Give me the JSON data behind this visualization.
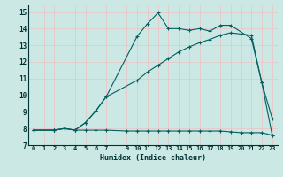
{
  "xlabel": "Humidex (Indice chaleur)",
  "bg_color": "#cce8e4",
  "grid_color": "#e8c8c8",
  "line_color": "#006060",
  "xlim": [
    -0.5,
    23.5
  ],
  "ylim": [
    7.0,
    15.4
  ],
  "xticks": [
    0,
    1,
    2,
    3,
    4,
    5,
    6,
    7,
    9,
    10,
    11,
    12,
    13,
    14,
    15,
    16,
    17,
    18,
    19,
    20,
    21,
    22,
    23
  ],
  "yticks": [
    7,
    8,
    9,
    10,
    11,
    12,
    13,
    14,
    15
  ],
  "line1_x": [
    0,
    2,
    3,
    4,
    5,
    6,
    7,
    10,
    11,
    12,
    13,
    14,
    15,
    16,
    17,
    18,
    19,
    21,
    22,
    23
  ],
  "line1_y": [
    7.9,
    7.9,
    8.0,
    7.9,
    8.35,
    9.05,
    9.9,
    13.55,
    14.3,
    14.95,
    14.0,
    14.0,
    13.9,
    14.0,
    13.85,
    14.2,
    14.2,
    13.4,
    10.75,
    8.6
  ],
  "line2_x": [
    0,
    2,
    3,
    4,
    5,
    6,
    7,
    10,
    11,
    12,
    13,
    14,
    15,
    16,
    17,
    18,
    19,
    21,
    22,
    23
  ],
  "line2_y": [
    7.9,
    7.9,
    8.0,
    7.9,
    8.35,
    9.05,
    9.9,
    10.9,
    11.4,
    11.8,
    12.2,
    12.6,
    12.9,
    13.15,
    13.35,
    13.6,
    13.75,
    13.6,
    10.75,
    7.6
  ],
  "line3_x": [
    0,
    2,
    3,
    4,
    5,
    6,
    7,
    9,
    10,
    11,
    12,
    13,
    14,
    15,
    16,
    17,
    18,
    19,
    20,
    21,
    22,
    23
  ],
  "line3_y": [
    7.9,
    7.9,
    8.0,
    7.9,
    7.9,
    7.9,
    7.9,
    7.85,
    7.85,
    7.85,
    7.85,
    7.85,
    7.85,
    7.85,
    7.85,
    7.85,
    7.85,
    7.8,
    7.75,
    7.75,
    7.75,
    7.6
  ]
}
